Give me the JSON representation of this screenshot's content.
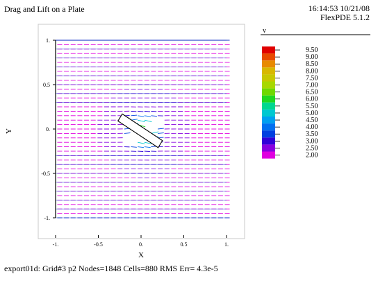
{
  "header": {
    "title": "Drag and Lift on a Plate",
    "time": "16:14:53 10/21/08",
    "version": "FlexPDE 5.1.2"
  },
  "footer": {
    "status": "export01d:  Grid#3  p2  Nodes=1848 Cells=880 RMS Err= 4.3e-5"
  },
  "chart_data": {
    "type": "vector-field",
    "xlabel": "X",
    "ylabel": "Y",
    "xlim": [
      -1,
      1
    ],
    "ylim": [
      -1,
      1
    ],
    "xticks": [
      "-1.",
      "-0.5",
      "0.",
      "0.5",
      "1."
    ],
    "yticks": [
      "1.",
      "0.5",
      "0.",
      "-0.5",
      "-1."
    ],
    "legend": {
      "title": "v",
      "levels": [
        "9.50",
        "9.00",
        "8.50",
        "8.00",
        "7.50",
        "7.00",
        "6.50",
        "6.00",
        "5.50",
        "5.00",
        "4.50",
        "4.00",
        "3.50",
        "3.00",
        "2.50",
        "2.00"
      ],
      "colors": [
        "#e00000",
        "#e84a00",
        "#e88a00",
        "#d8b800",
        "#c8c800",
        "#a8d800",
        "#70d800",
        "#20d820",
        "#00d890",
        "#00c8d0",
        "#00a0f0",
        "#0070f0",
        "#0040e0",
        "#3000d8",
        "#8800e0",
        "#e000e0"
      ]
    },
    "obstacle": {
      "label": "plate",
      "corners": [
        [
          -0.22,
          0.17
        ],
        [
          0.25,
          -0.13
        ],
        [
          0.2,
          -0.21
        ],
        [
          -0.27,
          0.09
        ]
      ]
    }
  }
}
